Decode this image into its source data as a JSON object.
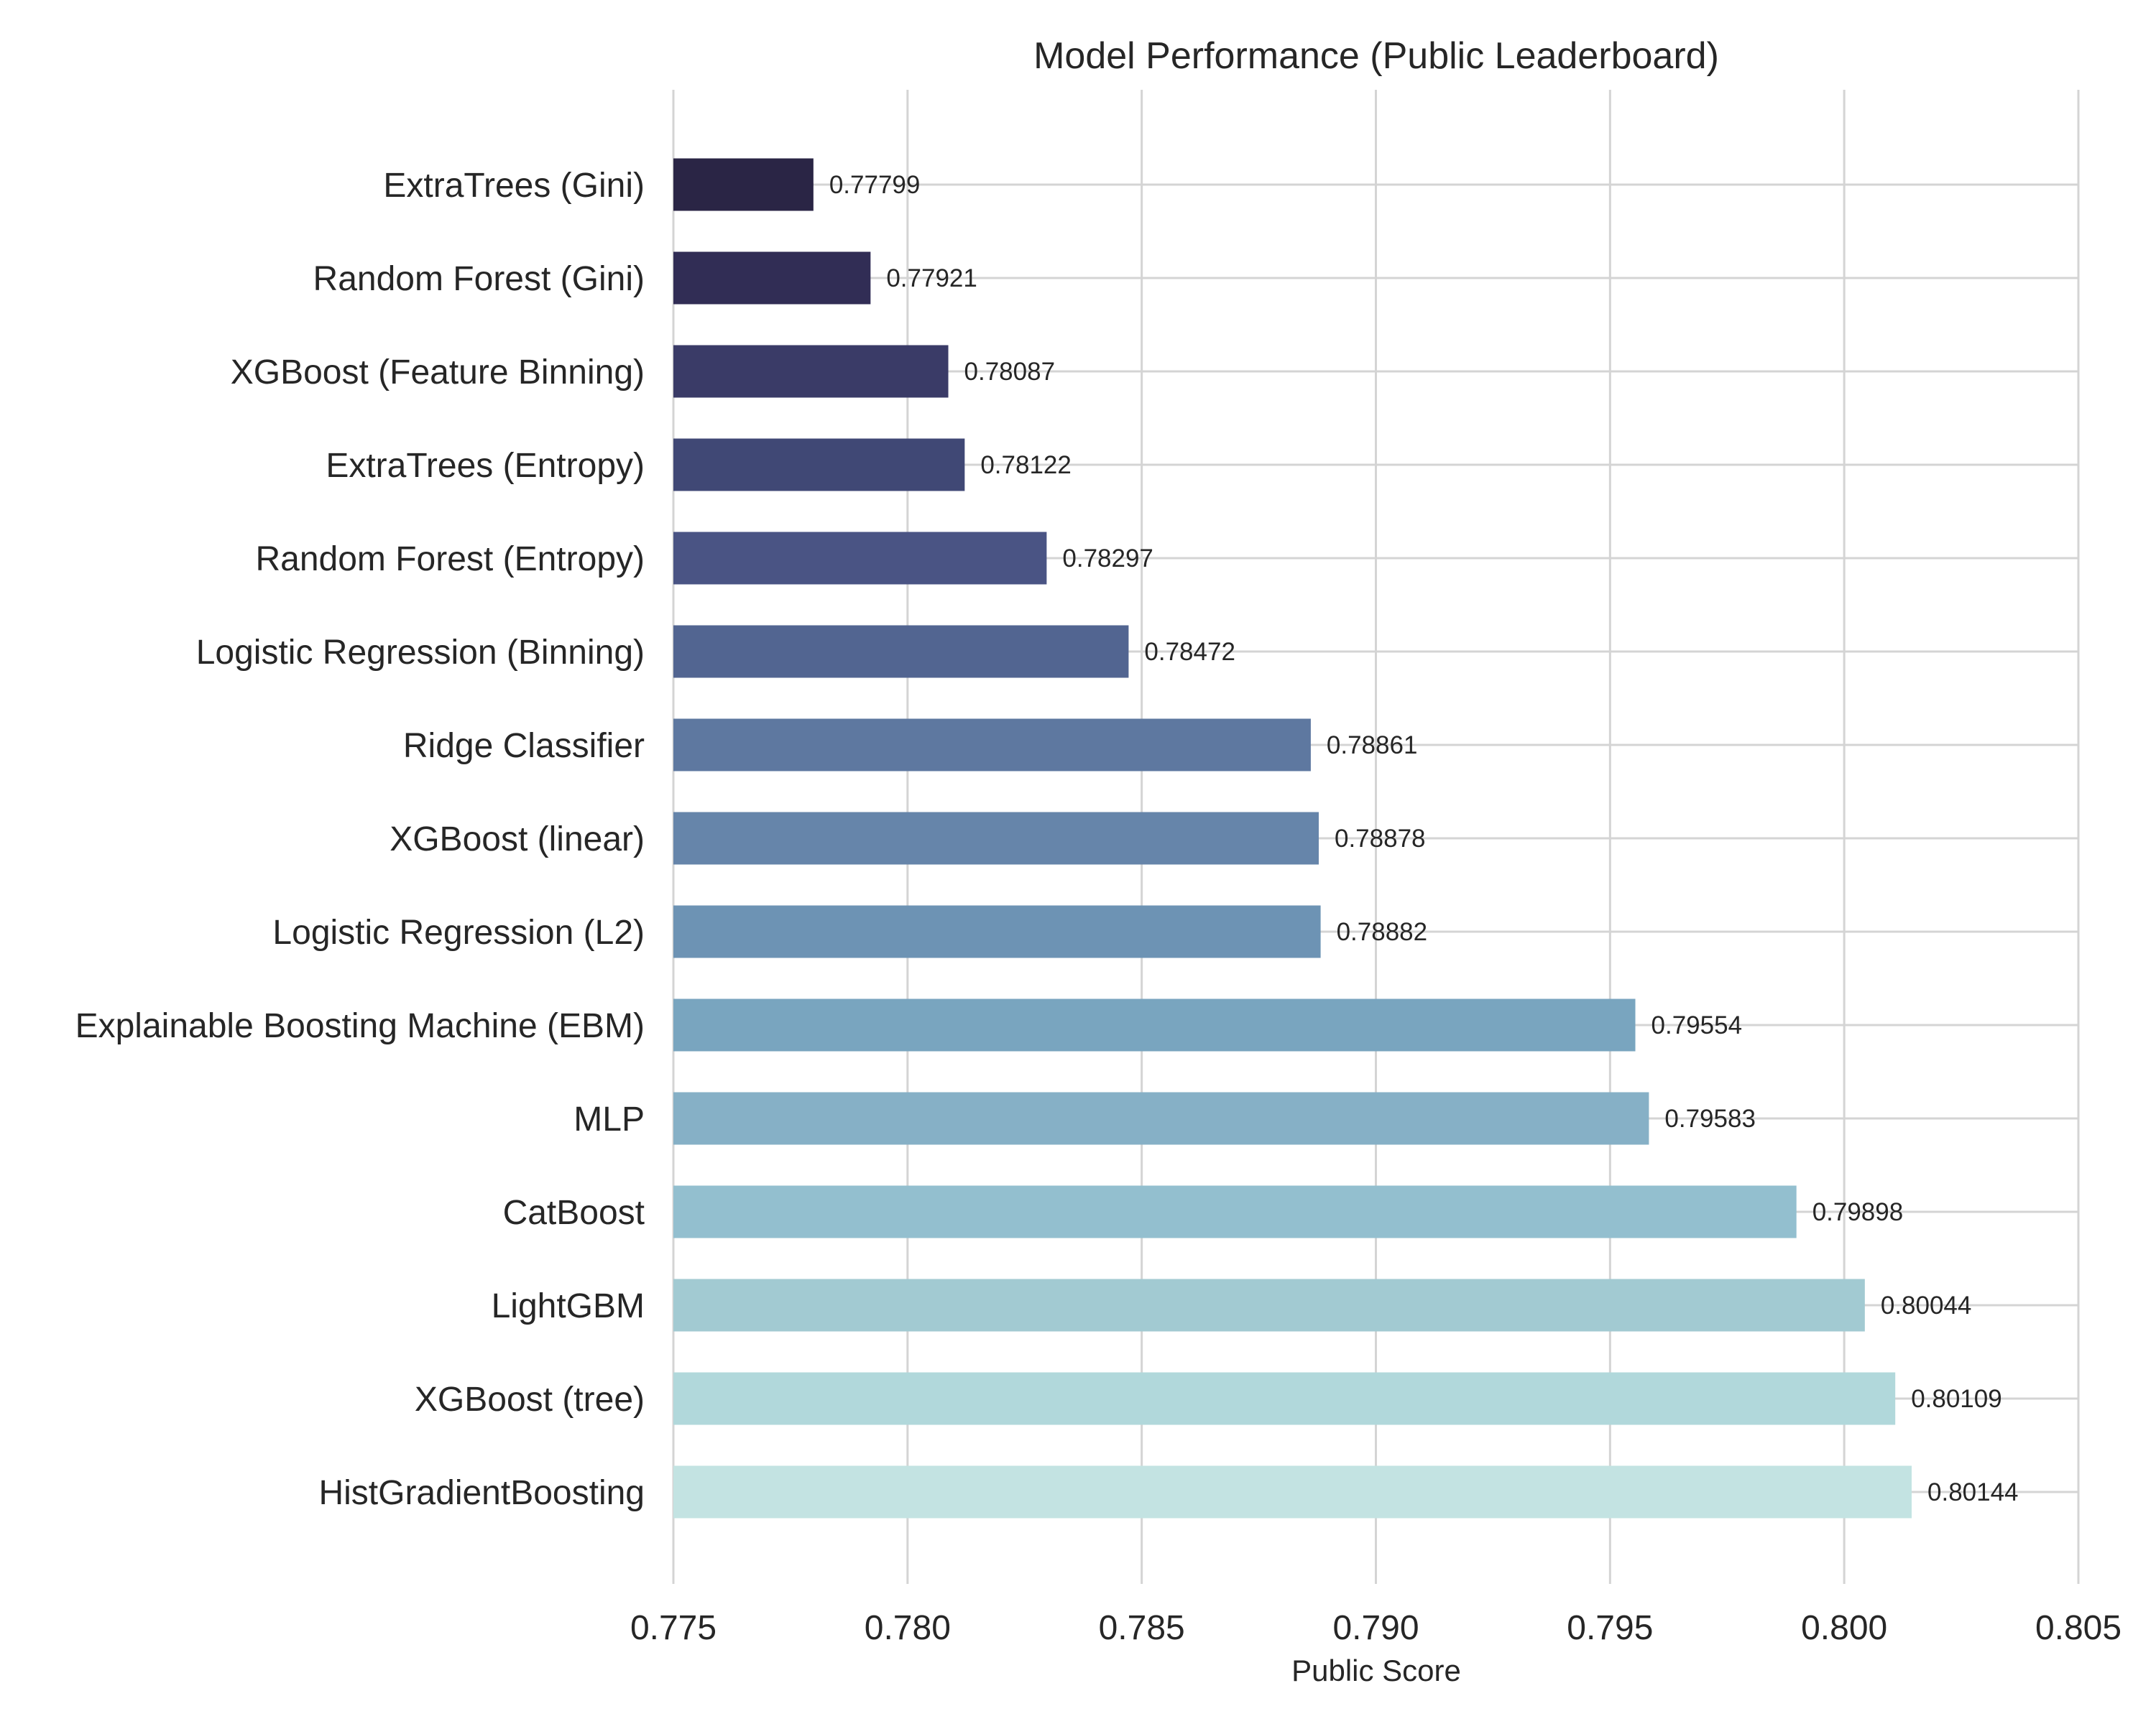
{
  "chart_data": {
    "type": "bar",
    "orientation": "horizontal",
    "title": "Model Performance (Public Leaderboard)",
    "xlabel": "Public Score",
    "ylabel": "",
    "xlim": [
      0.775,
      0.805
    ],
    "xticks": [
      "0.775",
      "0.780",
      "0.785",
      "0.790",
      "0.795",
      "0.800",
      "0.805"
    ],
    "grid": true,
    "categories": [
      "ExtraTrees (Gini)",
      "Random Forest (Gini)",
      "XGBoost (Feature Binning)",
      "ExtraTrees (Entropy)",
      "Random Forest (Entropy)",
      "Logistic Regression (Binning)",
      "Ridge Classifier",
      "XGBoost (linear)",
      "Logistic Regression (L2)",
      "Explainable Boosting Machine (EBM)",
      "MLP",
      "CatBoost",
      "LightGBM",
      "XGBoost (tree)",
      "HistGradientBoosting"
    ],
    "values": [
      0.77799,
      0.77921,
      0.78087,
      0.78122,
      0.78297,
      0.78472,
      0.78861,
      0.78878,
      0.78882,
      0.79554,
      0.79583,
      0.79898,
      0.80044,
      0.80109,
      0.80144
    ],
    "value_labels": [
      "0.77799",
      "0.77921",
      "0.78087",
      "0.78122",
      "0.78297",
      "0.78472",
      "0.78861",
      "0.78878",
      "0.78882",
      "0.79554",
      "0.79583",
      "0.79898",
      "0.80044",
      "0.80109",
      "0.80144"
    ],
    "colors": [
      "#2a2545",
      "#312d55",
      "#3a3b67",
      "#404875",
      "#4a5484",
      "#526591",
      "#5e78a0",
      "#6685aa",
      "#6d93b4",
      "#79a5bf",
      "#86b0c6",
      "#93bfcf",
      "#a2cad2",
      "#b1d8db",
      "#c3e3e2"
    ]
  }
}
